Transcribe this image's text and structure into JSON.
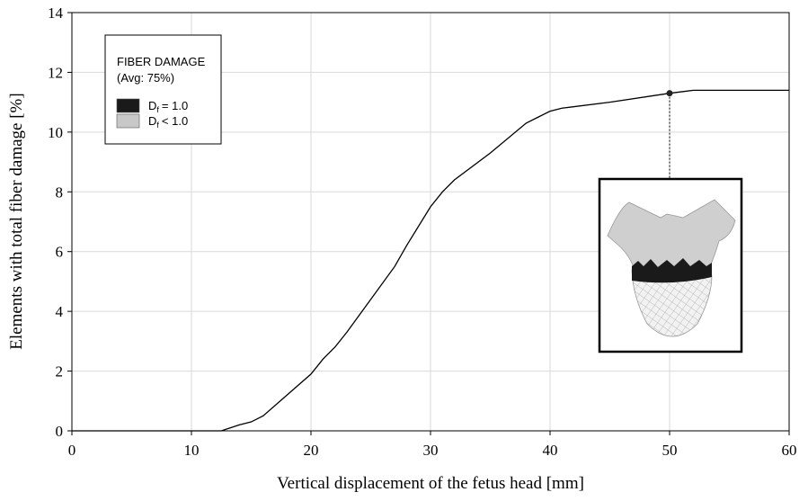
{
  "chart_data": {
    "type": "line",
    "x_label": "Vertical displacement of the fetus head [mm]",
    "y_label": "Elements with total fiber damage [%]",
    "x": [
      0,
      12.5,
      14,
      15,
      16,
      18,
      20,
      21,
      22,
      23,
      25,
      27,
      28,
      30,
      31,
      32,
      35,
      38,
      39,
      40,
      41,
      45,
      50,
      52,
      55,
      60
    ],
    "values": [
      0,
      0,
      0.2,
      0.3,
      0.5,
      1.2,
      1.9,
      2.4,
      2.8,
      3.3,
      4.4,
      5.5,
      6.2,
      7.5,
      8.0,
      8.4,
      9.3,
      10.3,
      10.5,
      10.7,
      10.8,
      11.0,
      11.3,
      11.4,
      11.4,
      11.4
    ],
    "color": "#000000",
    "xlim": [
      0,
      60
    ],
    "xticks": [
      0,
      10,
      20,
      30,
      40,
      50,
      60
    ],
    "ylim": [
      0,
      14
    ],
    "yticks": [
      0,
      2,
      4,
      6,
      8,
      10,
      12,
      14
    ],
    "grid": true,
    "highlight": {
      "x": 50,
      "y": 11.3
    },
    "legend": {
      "position": "upper left",
      "title": "FIBER DAMAGE",
      "subtitle": "(Avg: 75%)",
      "entries": [
        {
          "symbol": "D",
          "subscript": "f",
          "label": "= 1.0",
          "color": "#1a1a1a"
        },
        {
          "symbol": "D",
          "subscript": "f",
          "label": "< 1.0",
          "color": "#c8c8c8"
        }
      ]
    }
  }
}
